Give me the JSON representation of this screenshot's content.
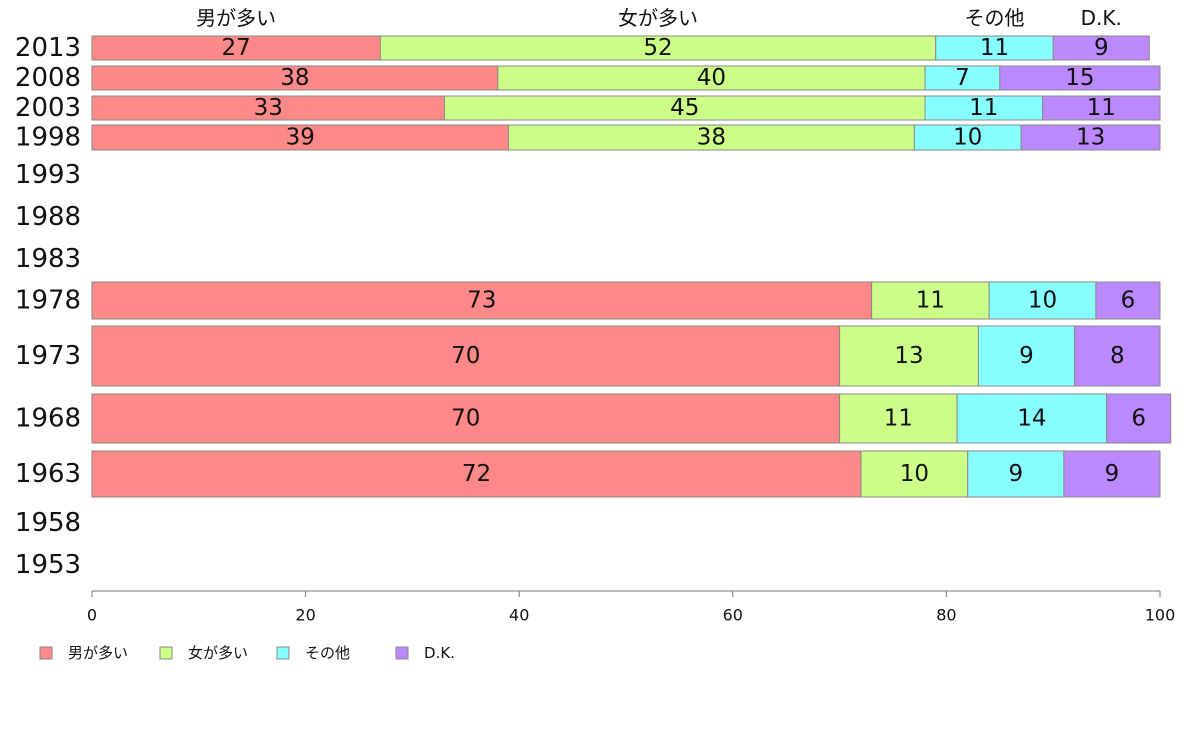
{
  "chart_data": {
    "type": "bar",
    "orientation": "horizontal-stacked-100",
    "categories": [
      "2013",
      "2008",
      "2003",
      "1998",
      "1993",
      "1988",
      "1983",
      "1978",
      "1973",
      "1968",
      "1963",
      "1958",
      "1953"
    ],
    "series": [
      {
        "name": "男が多い",
        "color": "#ff8888",
        "values": [
          27,
          38,
          33,
          39,
          null,
          null,
          null,
          73,
          70,
          70,
          72,
          null,
          null
        ]
      },
      {
        "name": "女が多い",
        "color": "#ccff88",
        "values": [
          52,
          40,
          45,
          38,
          null,
          null,
          null,
          11,
          13,
          11,
          10,
          null,
          null
        ]
      },
      {
        "name": "その他",
        "color": "#88ffff",
        "values": [
          11,
          7,
          11,
          10,
          null,
          null,
          null,
          10,
          9,
          14,
          9,
          null,
          null
        ]
      },
      {
        "name": "D.K.",
        "color": "#bb88ff",
        "values": [
          9,
          15,
          11,
          13,
          null,
          null,
          null,
          6,
          8,
          6,
          9,
          null,
          null
        ]
      }
    ],
    "xlim": [
      0,
      100
    ],
    "xticks": [
      0,
      20,
      40,
      60,
      80,
      100
    ],
    "title": "",
    "xlabel": "",
    "ylabel": "",
    "legend_position": "bottom-left",
    "grid": false
  }
}
